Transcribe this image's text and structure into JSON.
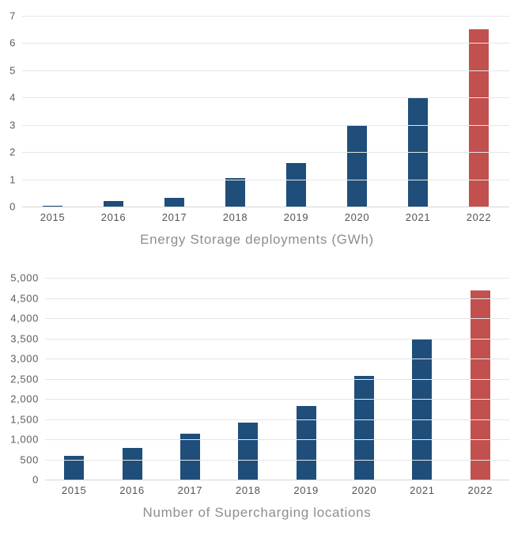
{
  "colors": {
    "bar_default": "#1f4e7a",
    "bar_highlight": "#c1504e",
    "gridline": "#e6e6e6",
    "axis_text": "#5b5c5e",
    "title_text": "#8e8e8e"
  },
  "chart_data": [
    {
      "type": "bar",
      "title": "Energy Storage deployments (GWh)",
      "categories": [
        "2015",
        "2016",
        "2017",
        "2018",
        "2019",
        "2020",
        "2021",
        "2022"
      ],
      "values": [
        0.02,
        0.2,
        0.32,
        1.04,
        1.6,
        3.0,
        4.0,
        6.5
      ],
      "highlight_category": "2022",
      "highlight_index": 7,
      "xlabel": "",
      "ylabel": "",
      "ylim": [
        0,
        7
      ],
      "yticks": [
        0,
        1,
        2,
        3,
        4,
        5,
        6,
        7
      ],
      "ytick_labels": [
        "0",
        "1",
        "2",
        "3",
        "4",
        "5",
        "6",
        "7"
      ],
      "grid": "horizontal",
      "legend": "none",
      "title_position": "bottom"
    },
    {
      "type": "bar",
      "title": "Number of Supercharging locations",
      "categories": [
        "2015",
        "2016",
        "2017",
        "2018",
        "2019",
        "2020",
        "2021",
        "2022"
      ],
      "values": [
        584,
        790,
        1128,
        1421,
        1821,
        2564,
        3476,
        4678
      ],
      "highlight_category": "2022",
      "highlight_index": 7,
      "xlabel": "",
      "ylabel": "",
      "ylim": [
        0,
        5000
      ],
      "yticks": [
        0,
        500,
        1000,
        1500,
        2000,
        2500,
        3000,
        3500,
        4000,
        4500,
        5000
      ],
      "ytick_labels": [
        "0",
        "500",
        "1,000",
        "1,500",
        "2,000",
        "2,500",
        "3,000",
        "3,500",
        "4,000",
        "4,500",
        "5,000"
      ],
      "grid": "horizontal",
      "legend": "none",
      "title_position": "bottom"
    }
  ]
}
